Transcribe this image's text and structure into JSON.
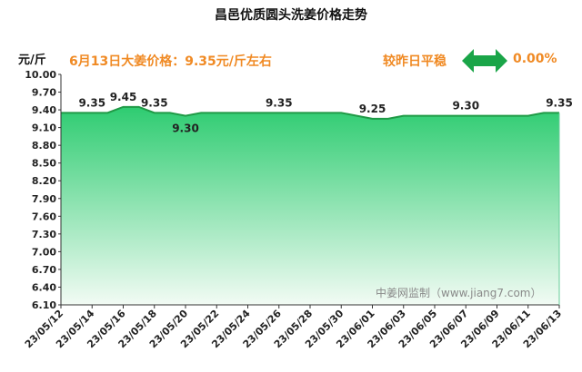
{
  "title": "昌邑优质圆头洗姜价格走势",
  "unit_label": "元/斤",
  "price_note": "6月13日大姜价格：9.35元/斤左右",
  "compare_label": "较昨日平稳",
  "change_pct": "0.00%",
  "watermark": "中姜网监制（www.jiang7.com）",
  "colors": {
    "accent": "#f08a24",
    "arrow": "#1aa548",
    "fill_top": "#2ecc71",
    "fill_bottom": "#f2fbf4",
    "line": "#1f9a46"
  },
  "chart_data": {
    "type": "area",
    "x": [
      "23/05/12",
      "23/05/13",
      "23/05/14",
      "23/05/15",
      "23/05/16",
      "23/05/17",
      "23/05/18",
      "23/05/19",
      "23/05/20",
      "23/05/21",
      "23/05/22",
      "23/05/23",
      "23/05/24",
      "23/05/25",
      "23/05/26",
      "23/05/27",
      "23/05/28",
      "23/05/29",
      "23/05/30",
      "23/05/31",
      "23/06/01",
      "23/06/02",
      "23/06/03",
      "23/06/04",
      "23/06/05",
      "23/06/06",
      "23/06/07",
      "23/06/08",
      "23/06/09",
      "23/06/10",
      "23/06/11",
      "23/06/12",
      "23/06/13"
    ],
    "values": [
      9.35,
      9.35,
      9.35,
      9.35,
      9.45,
      9.45,
      9.35,
      9.35,
      9.3,
      9.35,
      9.35,
      9.35,
      9.35,
      9.35,
      9.35,
      9.35,
      9.35,
      9.35,
      9.35,
      9.3,
      9.25,
      9.25,
      9.3,
      9.3,
      9.3,
      9.3,
      9.3,
      9.3,
      9.3,
      9.3,
      9.3,
      9.35,
      9.35
    ],
    "x_tick_labels": [
      "23/05/12",
      "23/05/14",
      "23/05/16",
      "23/05/18",
      "23/05/20",
      "23/05/22",
      "23/05/24",
      "23/05/26",
      "23/05/28",
      "23/05/30",
      "23/06/01",
      "23/06/03",
      "23/06/05",
      "23/06/07",
      "23/06/09",
      "23/06/11",
      "23/06/13"
    ],
    "data_labels": [
      {
        "x": "23/05/14",
        "text": "9.35"
      },
      {
        "x": "23/05/16",
        "text": "9.45"
      },
      {
        "x": "23/05/18",
        "text": "9.35"
      },
      {
        "x": "23/05/20",
        "text": "9.30"
      },
      {
        "x": "23/05/26",
        "text": "9.35"
      },
      {
        "x": "23/06/01",
        "text": "9.25"
      },
      {
        "x": "23/06/07",
        "text": "9.30"
      },
      {
        "x": "23/06/13",
        "text": "9.35"
      }
    ],
    "ylim": [
      6.1,
      10.0
    ],
    "y_ticks": [
      "10.00",
      "9.70",
      "9.40",
      "9.10",
      "8.80",
      "8.50",
      "8.20",
      "7.90",
      "7.60",
      "7.30",
      "7.00",
      "6.70",
      "6.40",
      "6.10"
    ],
    "grid": false
  }
}
